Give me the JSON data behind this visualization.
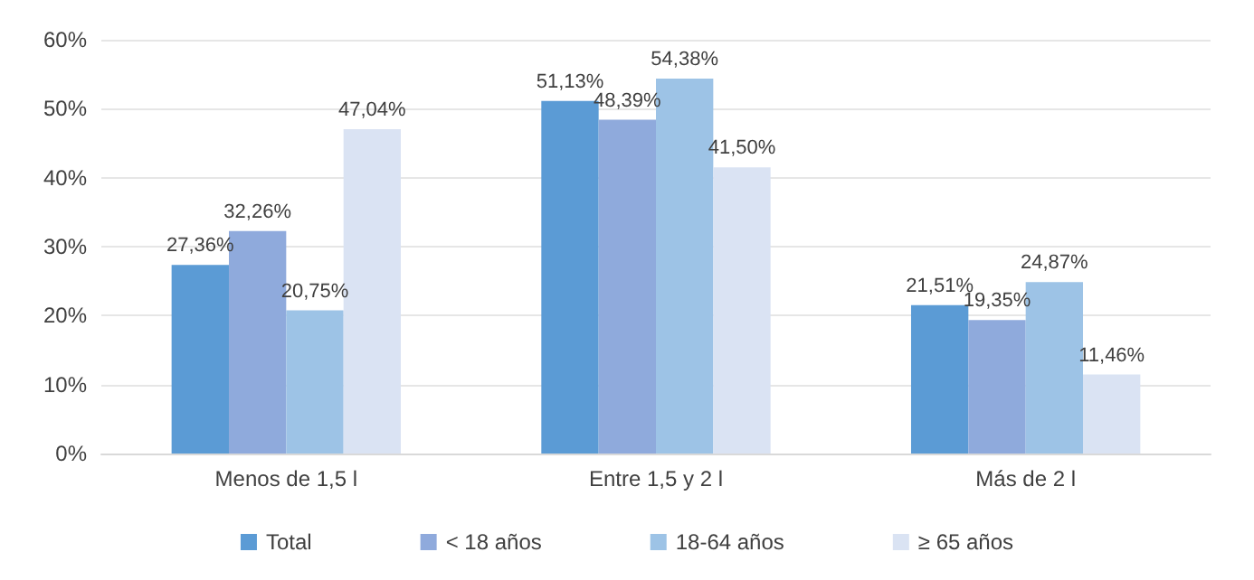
{
  "chart_data": {
    "type": "bar",
    "categories": [
      "Menos de 1,5 l",
      "Entre 1,5 y 2 l",
      "Más de 2 l"
    ],
    "series": [
      {
        "name": "Total",
        "color": "#5b9bd5",
        "values": [
          27.36,
          51.13,
          21.51
        ],
        "value_labels": [
          "27,36%",
          "51,13%",
          "21,51%"
        ]
      },
      {
        "name": "< 18 años",
        "color": "#8faadc",
        "values": [
          32.26,
          48.39,
          19.35
        ],
        "value_labels": [
          "32,26%",
          "48,39%",
          "19,35%"
        ]
      },
      {
        "name": "18-64 años",
        "color": "#9dc3e6",
        "values": [
          20.75,
          54.38,
          24.87
        ],
        "value_labels": [
          "20,75%",
          "54,38%",
          "24,87%"
        ]
      },
      {
        "name": "≥ 65 años",
        "color": "#dae3f3",
        "values": [
          47.04,
          41.5,
          11.46
        ],
        "value_labels": [
          "47,04%",
          "41,50%",
          "11,46%"
        ]
      }
    ],
    "ylim": [
      0,
      60
    ],
    "yticks": [
      {
        "value": 0,
        "label": "0%"
      },
      {
        "value": 10,
        "label": "10%"
      },
      {
        "value": 20,
        "label": "20%"
      },
      {
        "value": 30,
        "label": "30%"
      },
      {
        "value": 40,
        "label": "40%"
      },
      {
        "value": 50,
        "label": "50%"
      },
      {
        "value": 60,
        "label": "60%"
      }
    ],
    "grid": "y",
    "legend": "bottom"
  }
}
